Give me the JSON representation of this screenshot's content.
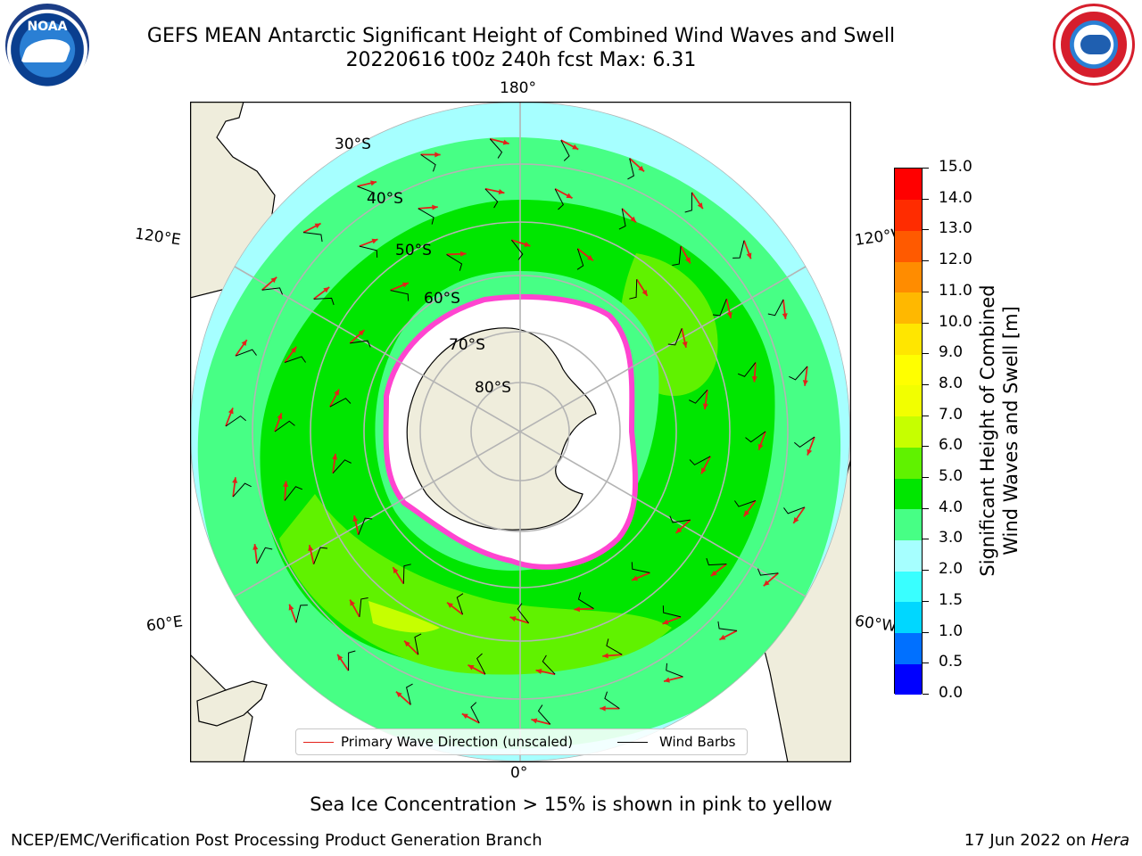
{
  "header": {
    "title_line1": "GEFS MEAN Antarctic Significant Height of Combined Wind Waves and Swell",
    "title_line2": "20220616 t00z 240h fcst   Max: 6.31"
  },
  "logos": {
    "left_text": "NOAA",
    "right_text": "NATIONAL WEATHER SERVICE"
  },
  "map": {
    "projection": "south-polar-stereographic",
    "longitude_labels": [
      "180°",
      "120°E",
      "120°W",
      "60°E",
      "60°W",
      "0°"
    ],
    "latitude_labels": [
      "30°S",
      "40°S",
      "50°S",
      "60°S",
      "70°S",
      "80°S"
    ],
    "colors": {
      "ocean_undefined": "#ffffff",
      "land": "#efeddc",
      "coast": "#000000",
      "grid": "#b4b4b4",
      "arrow": "#e4211a",
      "barb": "#000000"
    }
  },
  "colorbar": {
    "label": "Significant Height of Combined Wind Waves and Swell [m]",
    "label_line1": "Significant Height of Combined",
    "label_line2": "Wind Waves and Swell [m]",
    "ticks": [
      "0.0",
      "0.5",
      "1.0",
      "1.5",
      "2.0",
      "3.0",
      "4.0",
      "5.0",
      "6.0",
      "7.0",
      "8.0",
      "9.0",
      "10.0",
      "11.0",
      "12.0",
      "13.0",
      "14.0",
      "15.0"
    ],
    "colors": [
      "#0000ff",
      "#0070ff",
      "#00d7ff",
      "#39ffff",
      "#a6ffff",
      "#47ff85",
      "#00e600",
      "#60f200",
      "#c6ff00",
      "#f2ff00",
      "#ffff00",
      "#ffe600",
      "#ffb800",
      "#ff8c00",
      "#ff5a00",
      "#ff2c00",
      "#ff0000"
    ]
  },
  "legend": {
    "wave_label": "Primary Wave Direction (unscaled)",
    "barb_label": "Wind Barbs"
  },
  "subtitle": "Sea Ice Concentration > 15% is shown in pink to yellow",
  "footer": {
    "left": "NCEP/EMC/Verification Post Processing Product Generation Branch",
    "right_prefix": "17 Jun 2022 on ",
    "right_system": "Hera"
  }
}
